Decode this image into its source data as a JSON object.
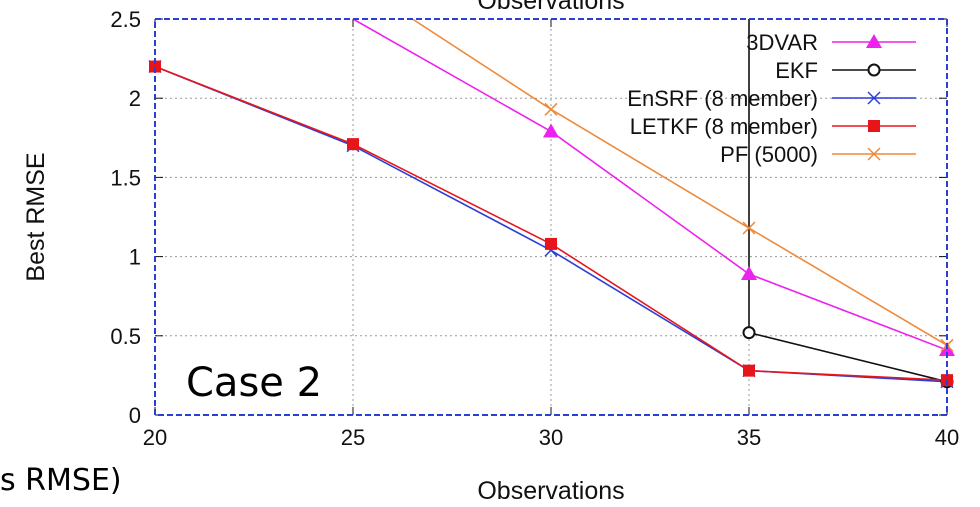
{
  "chart_data": {
    "type": "line",
    "title": "Observations",
    "xlabel": "Observations",
    "ylabel": "Best RMSE",
    "xlim": [
      20,
      40
    ],
    "ylim": [
      0,
      2.5
    ],
    "x_ticks": [
      20,
      25,
      30,
      35,
      40
    ],
    "y_ticks": [
      0,
      0.5,
      1,
      1.5,
      2,
      2.5
    ],
    "x_tick_labels": [
      "20",
      "25",
      "30",
      "35",
      "40"
    ],
    "y_tick_labels": [
      "0",
      "0.5",
      "1",
      "1.5",
      "2",
      "2.5"
    ],
    "grid": true,
    "legend_position": "top-right",
    "series": [
      {
        "name": "3DVAR",
        "color": "#ee22ee",
        "marker": "triangle",
        "x": [
          25,
          30,
          35,
          40
        ],
        "y": [
          2.5,
          1.79,
          0.89,
          0.41
        ]
      },
      {
        "name": "EKF",
        "color": "#111111",
        "marker": "circle",
        "x": [
          35,
          35,
          40
        ],
        "y": [
          2.5,
          0.52,
          0.21
        ]
      },
      {
        "name": "EnSRF (8 member)",
        "color": "#2b3fd6",
        "marker": "x",
        "x": [
          20,
          25,
          30,
          35,
          40
        ],
        "y": [
          2.2,
          1.7,
          1.04,
          0.28,
          0.21
        ]
      },
      {
        "name": "LETKF (8 member)",
        "color": "#e8141b",
        "marker": "square",
        "x": [
          20,
          25,
          30,
          35,
          40
        ],
        "y": [
          2.2,
          1.71,
          1.08,
          0.28,
          0.22
        ]
      },
      {
        "name": "PF (5000)",
        "color": "#ee8a3c",
        "marker": "x",
        "x": [
          26.5,
          30,
          35,
          40
        ],
        "y": [
          2.5,
          1.93,
          1.18,
          0.44
        ]
      }
    ],
    "annotations": [
      "Case 2"
    ],
    "partial_text": "s RMSE)"
  }
}
